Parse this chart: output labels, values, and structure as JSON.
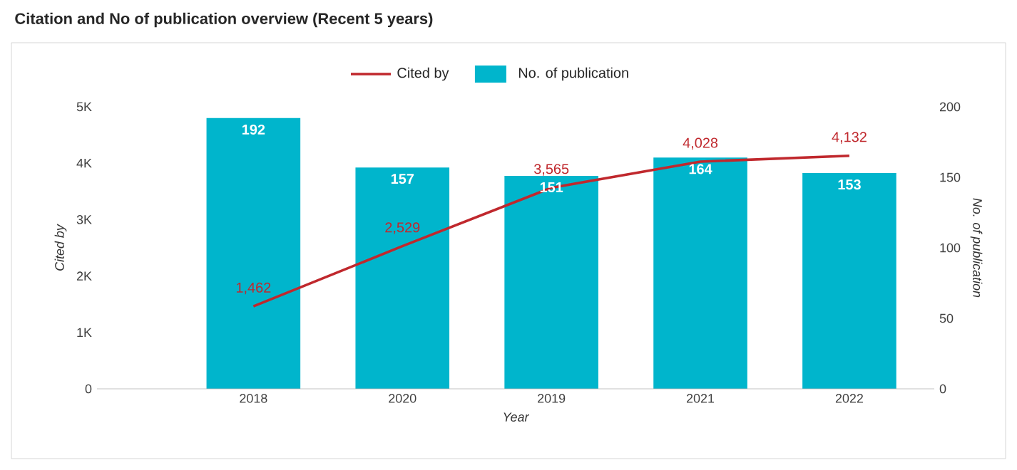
{
  "chart_data": {
    "type": "bar",
    "title": "Citation and No of publication overview (Recent 5 years)",
    "xlabel": "Year",
    "ylabel": "Cited by",
    "y2label": "No. of publication",
    "categories": [
      "2018",
      "2020",
      "2019",
      "2021",
      "2022"
    ],
    "series": [
      {
        "name": "Cited by",
        "type": "line",
        "axis": "y",
        "color": "#c0282d",
        "values": [
          1462,
          2529,
          3565,
          4028,
          4132
        ],
        "value_labels": [
          "1,462",
          "2,529",
          "3,565",
          "4,028",
          "4,132"
        ]
      },
      {
        "name": "No. of publication",
        "axis": "y2",
        "color": "#00b5cc",
        "values": [
          192,
          157,
          151,
          164,
          153
        ],
        "value_labels": [
          "192",
          "157",
          "151",
          "164",
          "153"
        ]
      }
    ],
    "ylim": [
      0,
      5000
    ],
    "yticks": [
      0,
      {
        "value": 1000,
        "label": "1K"
      },
      {
        "value": 2000,
        "label": "2K"
      },
      {
        "value": 3000,
        "label": "3K"
      },
      {
        "value": 4000,
        "label": "4K"
      },
      {
        "value": 5000,
        "label": "5K"
      }
    ],
    "y2lim": [
      0,
      200
    ],
    "y2ticks": [
      0,
      50,
      100,
      150,
      200
    ],
    "legend": "top"
  }
}
